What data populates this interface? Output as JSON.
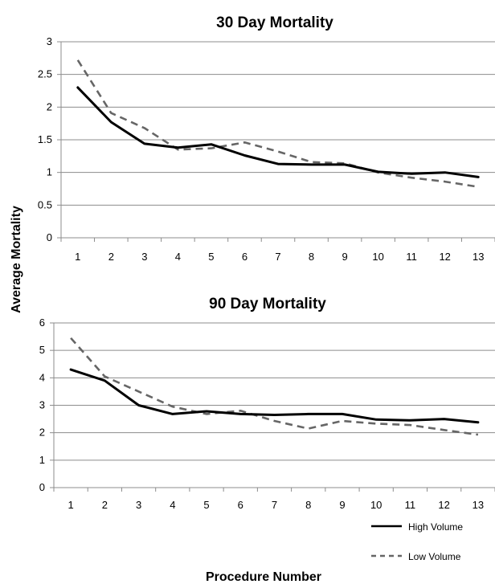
{
  "chart_data": [
    {
      "type": "line",
      "title": "30 Day Mortality",
      "categories": [
        "1",
        "2",
        "3",
        "4",
        "5",
        "6",
        "7",
        "8",
        "9",
        "10",
        "11",
        "12",
        "13"
      ],
      "yticks": [
        "0",
        "0.5",
        "1",
        "1.5",
        "2",
        "2.5",
        "3"
      ],
      "ylim": [
        0,
        3
      ],
      "grid": true,
      "series": [
        {
          "name": "High Volume",
          "color": "#000000",
          "dash": "solid",
          "values": [
            2.3,
            1.77,
            1.44,
            1.38,
            1.43,
            1.26,
            1.13,
            1.12,
            1.12,
            1.01,
            0.98,
            1.0,
            0.93
          ]
        },
        {
          "name": "Low Volume",
          "color": "#666666",
          "dash": "dashed",
          "values": [
            2.72,
            1.91,
            1.68,
            1.35,
            1.37,
            1.46,
            1.32,
            1.16,
            1.14,
            1.0,
            0.92,
            0.86,
            0.78
          ]
        }
      ]
    },
    {
      "type": "line",
      "title": "90 Day Mortality",
      "categories": [
        "1",
        "2",
        "3",
        "4",
        "5",
        "6",
        "7",
        "8",
        "9",
        "10",
        "11",
        "12",
        "13"
      ],
      "yticks": [
        "0",
        "1",
        "2",
        "3",
        "4",
        "5",
        "6"
      ],
      "ylim": [
        0,
        6
      ],
      "grid": true,
      "series": [
        {
          "name": "High Volume",
          "color": "#000000",
          "dash": "solid",
          "values": [
            4.3,
            3.9,
            3.0,
            2.68,
            2.78,
            2.68,
            2.65,
            2.68,
            2.68,
            2.48,
            2.45,
            2.5,
            2.38
          ]
        },
        {
          "name": "Low Volume",
          "color": "#666666",
          "dash": "dashed",
          "values": [
            5.45,
            4.05,
            3.5,
            2.95,
            2.68,
            2.8,
            2.43,
            2.15,
            2.43,
            2.33,
            2.28,
            2.1,
            1.93
          ]
        }
      ]
    }
  ],
  "shared": {
    "ylabel": "Average Mortality",
    "xlabel": "Procedure Number",
    "legend": [
      {
        "label": "High Volume",
        "color": "#000000",
        "dash": "solid"
      },
      {
        "label": "Low Volume",
        "color": "#666666",
        "dash": "dashed"
      }
    ],
    "legend_position": "bottom-right"
  }
}
